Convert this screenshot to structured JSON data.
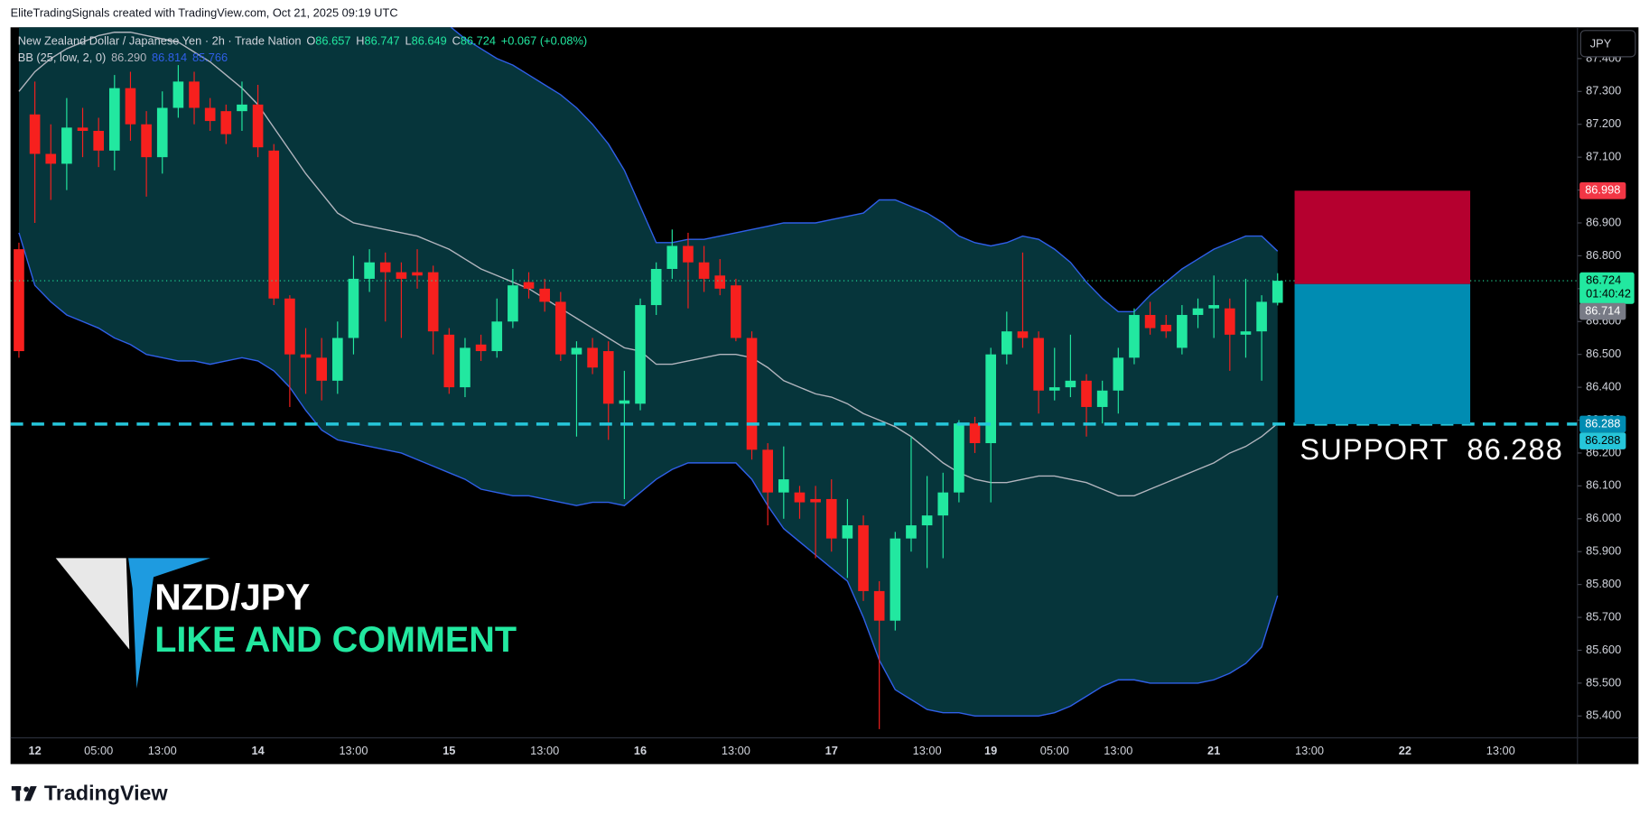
{
  "chart_data": {
    "type": "candlestick",
    "up_color": "#22e8a0",
    "down_color": "#f7201e",
    "grid": false,
    "legend": {
      "symbol": "New Zealand Dollar / Japanese Yen · 2h · Trade Nation",
      "fields": [
        {
          "key": "O",
          "value": "86.657"
        },
        {
          "key": "H",
          "value": "86.747"
        },
        {
          "key": "L",
          "value": "86.649"
        },
        {
          "key": "C",
          "value": "86.724"
        }
      ],
      "change": "+0.067 (+0.08%)",
      "bb_name": "BB (25, low, 2, 0)",
      "bb_values": [
        "86.290",
        "86.814",
        "85.766"
      ]
    },
    "categories": [
      null,
      "12",
      null,
      null,
      null,
      "05:00",
      null,
      null,
      null,
      "13:00",
      null,
      null,
      null,
      null,
      null,
      "14",
      null,
      null,
      null,
      null,
      null,
      "13:00",
      null,
      null,
      null,
      null,
      null,
      "15",
      null,
      null,
      null,
      null,
      null,
      "13:00",
      null,
      null,
      null,
      null,
      null,
      "16",
      null,
      null,
      null,
      null,
      null,
      "13:00",
      null,
      null,
      null,
      null,
      null,
      "17",
      null,
      null,
      null,
      null,
      null,
      "13:00",
      null,
      null,
      null,
      "19",
      null,
      null,
      null,
      "05:00",
      null,
      null,
      null,
      "13:00",
      null,
      null,
      null,
      null,
      null,
      "21",
      null,
      null,
      null,
      null,
      null,
      "13:00",
      null,
      null,
      null,
      null,
      null,
      "22",
      null,
      null,
      null,
      null,
      null,
      "13:00",
      null,
      null,
      null
    ],
    "open": [
      86.82,
      87.23,
      87.11,
      87.08,
      87.19,
      87.18,
      87.12,
      87.31,
      87.2,
      87.1,
      87.25,
      87.33,
      87.25,
      87.24,
      87.24,
      87.26,
      87.12,
      86.67,
      86.5,
      86.49,
      86.42,
      86.55,
      86.73,
      86.78,
      86.75,
      86.75,
      86.75,
      86.56,
      86.4,
      86.53,
      86.51,
      86.6,
      86.72,
      86.7,
      86.66,
      86.5,
      86.52,
      86.51,
      86.35,
      86.35,
      86.65,
      86.76,
      86.83,
      86.78,
      86.74,
      86.71,
      86.55,
      86.21,
      86.08,
      86.08,
      86.06,
      86.06,
      85.94,
      85.98,
      85.78,
      85.69,
      85.94,
      85.98,
      86.01,
      86.08,
      86.29,
      86.23,
      86.5,
      86.57,
      86.55,
      86.39,
      86.4,
      86.42,
      86.34,
      86.39,
      86.49,
      86.62,
      86.59,
      86.52,
      86.62,
      86.64,
      86.64,
      86.56,
      86.57,
      86.657,
      null,
      null,
      null,
      null,
      null,
      null,
      null,
      null,
      null,
      null,
      null,
      null,
      null,
      null,
      null,
      null,
      null
    ],
    "high": [
      86.84,
      87.33,
      87.2,
      87.28,
      87.25,
      87.22,
      87.35,
      87.36,
      87.24,
      87.3,
      87.38,
      87.36,
      87.28,
      87.26,
      87.33,
      87.32,
      87.14,
      86.68,
      86.58,
      86.55,
      86.6,
      86.8,
      86.82,
      86.81,
      86.78,
      86.82,
      86.77,
      86.58,
      86.55,
      86.56,
      86.67,
      86.76,
      86.75,
      86.73,
      86.69,
      86.54,
      86.55,
      86.54,
      86.45,
      86.67,
      86.78,
      86.88,
      86.87,
      86.83,
      86.79,
      86.73,
      86.57,
      86.23,
      86.22,
      86.1,
      86.1,
      86.12,
      86.06,
      86.01,
      85.81,
      85.96,
      86.25,
      86.13,
      86.14,
      86.3,
      86.31,
      86.52,
      86.63,
      86.81,
      86.57,
      86.52,
      86.56,
      86.44,
      86.42,
      86.52,
      86.64,
      86.66,
      86.62,
      86.65,
      86.67,
      86.74,
      86.67,
      86.73,
      86.68,
      86.747,
      null,
      null,
      null,
      null,
      null,
      null,
      null,
      null,
      null,
      null,
      null,
      null,
      null,
      null,
      null,
      null,
      null
    ],
    "low": [
      86.49,
      86.9,
      86.97,
      87.0,
      87.1,
      87.07,
      87.06,
      87.15,
      86.98,
      87.05,
      87.22,
      87.2,
      87.18,
      87.14,
      87.18,
      87.1,
      86.65,
      86.34,
      86.38,
      86.36,
      86.38,
      86.5,
      86.69,
      86.6,
      86.55,
      86.7,
      86.5,
      86.38,
      86.37,
      86.48,
      86.49,
      86.58,
      86.67,
      86.63,
      86.48,
      86.25,
      86.44,
      86.24,
      86.06,
      86.33,
      86.62,
      86.73,
      86.64,
      86.69,
      86.68,
      86.54,
      86.18,
      85.98,
      86.0,
      86.0,
      85.88,
      85.9,
      85.82,
      85.75,
      85.36,
      85.66,
      85.9,
      85.85,
      85.88,
      86.05,
      86.2,
      86.05,
      86.47,
      86.52,
      86.32,
      86.36,
      86.37,
      86.25,
      86.29,
      86.32,
      86.47,
      86.56,
      86.55,
      86.5,
      86.58,
      86.55,
      86.45,
      86.49,
      86.42,
      86.649,
      null,
      null,
      null,
      null,
      null,
      null,
      null,
      null,
      null,
      null,
      null,
      null,
      null,
      null,
      null,
      null,
      null
    ],
    "close": [
      86.51,
      87.11,
      87.08,
      87.19,
      87.18,
      87.12,
      87.31,
      87.2,
      87.1,
      87.25,
      87.33,
      87.25,
      87.21,
      87.17,
      87.26,
      87.13,
      86.67,
      86.5,
      86.49,
      86.42,
      86.55,
      86.73,
      86.78,
      86.75,
      86.73,
      86.74,
      86.57,
      86.4,
      86.52,
      86.51,
      86.6,
      86.71,
      86.7,
      86.66,
      86.5,
      86.52,
      86.46,
      86.35,
      86.36,
      86.65,
      86.76,
      86.83,
      86.78,
      86.73,
      86.7,
      86.55,
      86.21,
      86.08,
      86.12,
      86.05,
      86.05,
      85.94,
      85.98,
      85.78,
      85.69,
      85.94,
      85.98,
      86.01,
      86.08,
      86.29,
      86.23,
      86.5,
      86.57,
      86.55,
      86.39,
      86.4,
      86.42,
      86.34,
      86.39,
      86.49,
      86.62,
      86.58,
      86.57,
      86.62,
      86.64,
      86.65,
      86.56,
      86.57,
      86.66,
      86.724,
      null,
      null,
      null,
      null,
      null,
      null,
      null,
      null,
      null,
      null,
      null,
      null,
      null,
      null,
      null,
      null,
      null
    ],
    "bb": {
      "fill": "#06353b",
      "band_color": "#2f5fe8",
      "basis_color": "#b2b5be",
      "upper": [
        87.73,
        88.01,
        88.14,
        88.24,
        88.3,
        88.36,
        88.41,
        88.43,
        88.44,
        88.43,
        88.42,
        88.36,
        88.31,
        88.22,
        88.13,
        88.04,
        87.93,
        87.84,
        87.77,
        87.71,
        87.62,
        87.57,
        87.56,
        87.55,
        87.54,
        87.54,
        87.52,
        87.5,
        87.46,
        87.43,
        87.4,
        87.38,
        87.35,
        87.32,
        87.29,
        87.25,
        87.2,
        87.14,
        87.06,
        86.95,
        86.84,
        86.84,
        86.85,
        86.85,
        86.86,
        86.87,
        86.88,
        86.89,
        86.9,
        86.9,
        86.9,
        86.91,
        86.92,
        86.93,
        86.97,
        86.97,
        86.95,
        86.93,
        86.9,
        86.86,
        86.84,
        86.83,
        86.84,
        86.86,
        86.85,
        86.82,
        86.78,
        86.72,
        86.67,
        86.63,
        86.63,
        86.68,
        86.72,
        86.76,
        86.79,
        86.82,
        86.84,
        86.86,
        86.86,
        86.814,
        null,
        null,
        null,
        null,
        null,
        null,
        null,
        null,
        null,
        null,
        null,
        null,
        null,
        null,
        null,
        null,
        null
      ],
      "middle": [
        87.3,
        87.36,
        87.4,
        87.43,
        87.45,
        87.47,
        87.48,
        87.48,
        87.47,
        87.46,
        87.45,
        87.42,
        87.39,
        87.35,
        87.31,
        87.26,
        87.19,
        87.12,
        87.05,
        86.99,
        86.93,
        86.9,
        86.89,
        86.88,
        86.87,
        86.86,
        86.84,
        86.82,
        86.79,
        86.76,
        86.74,
        86.72,
        86.7,
        86.67,
        86.64,
        86.61,
        86.58,
        86.55,
        86.52,
        86.51,
        86.47,
        86.47,
        86.48,
        86.49,
        86.5,
        86.5,
        86.49,
        86.46,
        86.42,
        86.4,
        86.38,
        86.37,
        86.35,
        86.32,
        86.3,
        86.28,
        86.25,
        86.21,
        86.17,
        86.14,
        86.12,
        86.11,
        86.11,
        86.12,
        86.13,
        86.13,
        86.12,
        86.11,
        86.09,
        86.07,
        86.07,
        86.09,
        86.11,
        86.13,
        86.15,
        86.17,
        86.2,
        86.22,
        86.25,
        86.29,
        null,
        null,
        null,
        null,
        null,
        null,
        null,
        null,
        null,
        null,
        null,
        null,
        null,
        null,
        null,
        null,
        null
      ],
      "lower": [
        86.87,
        86.71,
        86.66,
        86.62,
        86.6,
        86.58,
        86.55,
        86.53,
        86.5,
        86.49,
        86.48,
        86.48,
        86.47,
        86.48,
        86.49,
        86.48,
        86.45,
        86.4,
        86.33,
        86.27,
        86.24,
        86.23,
        86.22,
        86.21,
        86.2,
        86.18,
        86.16,
        86.14,
        86.12,
        86.09,
        86.08,
        86.07,
        86.07,
        86.06,
        86.05,
        86.04,
        86.05,
        86.05,
        86.04,
        86.08,
        86.12,
        86.15,
        86.17,
        86.17,
        86.17,
        86.17,
        86.12,
        86.04,
        85.97,
        85.93,
        85.89,
        85.85,
        85.81,
        85.7,
        85.57,
        85.48,
        85.45,
        85.42,
        85.41,
        85.41,
        85.4,
        85.4,
        85.4,
        85.4,
        85.4,
        85.41,
        85.43,
        85.46,
        85.49,
        85.51,
        85.51,
        85.5,
        85.5,
        85.5,
        85.5,
        85.51,
        85.53,
        85.56,
        85.61,
        85.766,
        null,
        null,
        null,
        null,
        null,
        null,
        null,
        null,
        null,
        null,
        null,
        null,
        null,
        null,
        null,
        null,
        null
      ]
    },
    "ylim": [
      85.34,
      87.495
    ],
    "yticks": [
      {
        "value": 85.4,
        "label": "85.400"
      },
      {
        "value": 85.5,
        "label": "85.500"
      },
      {
        "value": 85.6,
        "label": "85.600"
      },
      {
        "value": 85.7,
        "label": "85.700"
      },
      {
        "value": 85.8,
        "label": "85.800"
      },
      {
        "value": 85.9,
        "label": "85.900"
      },
      {
        "value": 86.0,
        "label": "86.000"
      },
      {
        "value": 86.1,
        "label": "86.100"
      },
      {
        "value": 86.2,
        "label": "86.200"
      },
      {
        "value": 86.3,
        "label": "86.300"
      },
      {
        "value": 86.4,
        "label": "86.400"
      },
      {
        "value": 86.5,
        "label": "86.500"
      },
      {
        "value": 86.6,
        "label": "86.600"
      },
      {
        "value": 86.7,
        "label": "86.700"
      },
      {
        "value": 86.8,
        "label": "86.800"
      },
      {
        "value": 86.9,
        "label": "86.900"
      },
      {
        "value": 87.0,
        "label": "87.000"
      },
      {
        "value": 87.1,
        "label": "87.100"
      },
      {
        "value": 87.2,
        "label": "87.200"
      },
      {
        "value": 87.3,
        "label": "87.300"
      },
      {
        "value": 87.4,
        "label": "87.400"
      }
    ],
    "stop": {
      "value": 86.998,
      "label": "86.998",
      "color": "#b5002f"
    },
    "entry": {
      "value": 86.714,
      "label": "86.714"
    },
    "last": {
      "value": 86.724,
      "label": "86.724"
    },
    "countdown": "01:40:42",
    "target": {
      "value": 86.288,
      "label": "86.288",
      "color": "#008cb2"
    },
    "support": {
      "value": 86.288,
      "label": "86.288",
      "color": "#26c6da"
    },
    "support_text": "SUPPORT  86.288"
  },
  "header": {
    "top_bar": "EliteTradingSignals created with TradingView.com, Oct 21, 2025 09:19 UTC",
    "currency": "JPY",
    "brand": "TradingView"
  },
  "logo": {
    "pair": "NZD/JPY",
    "cta": "LIKE AND COMMENT"
  }
}
